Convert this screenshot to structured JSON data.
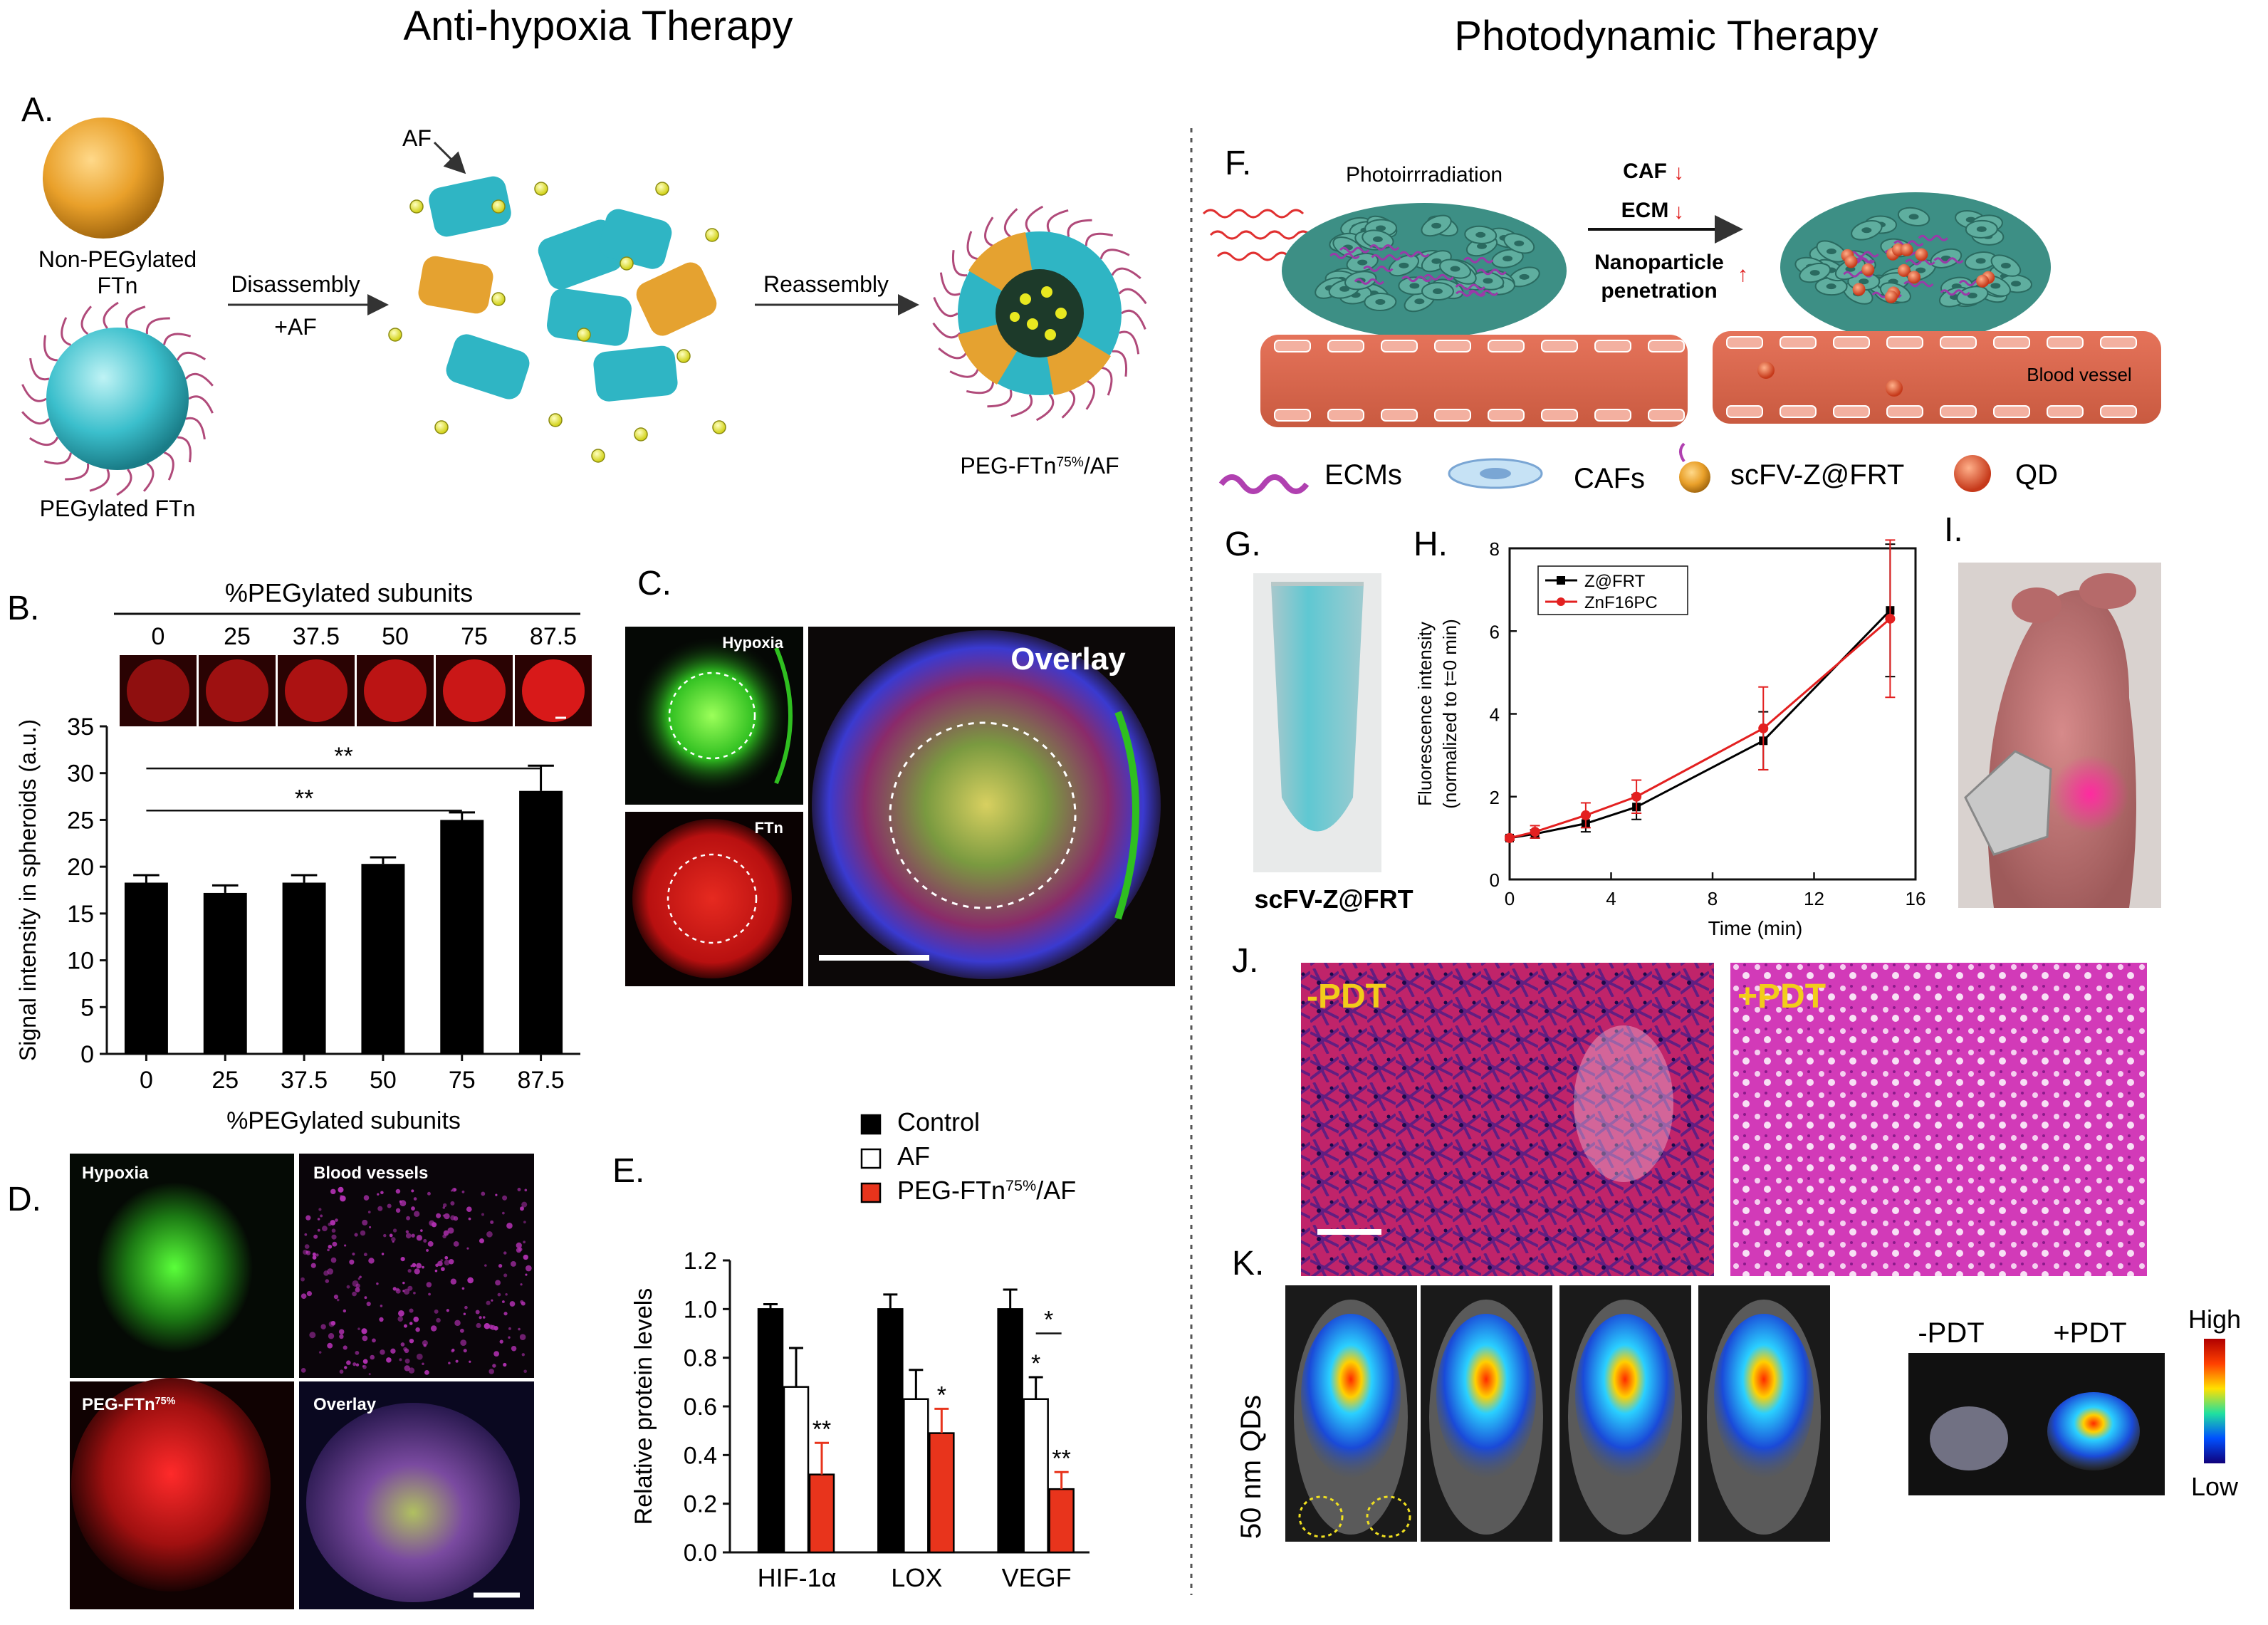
{
  "titles": {
    "left": "Anti-hypoxia Therapy",
    "right": "Photodynamic Therapy"
  },
  "panelA": {
    "letter": "A.",
    "af_pointer": "AF",
    "non_peg": [
      "Non-PEGylated",
      "FTn"
    ],
    "peg": "PEGylated FTn",
    "step1": [
      "Disassembly",
      "+AF"
    ],
    "step2": "Reassembly",
    "product": "PEG-FTn75%/AF"
  },
  "panelB": {
    "letter": "B.",
    "top_title": "%PEGylated subunits",
    "sig": [
      "**",
      "**"
    ]
  },
  "panelC": {
    "letter": "C.",
    "labels": {
      "hypoxia": "Hypoxia",
      "ftn": "FTn",
      "overlay": "Overlay"
    }
  },
  "panelD": {
    "letter": "D.",
    "labels": [
      "Hypoxia",
      "Blood vessels",
      "PEG-FTn75%",
      "Overlay"
    ]
  },
  "panelE": {
    "letter": "E.",
    "sig": [
      "**",
      "*",
      "*",
      "*",
      "**"
    ]
  },
  "panelF": {
    "letter": "F.",
    "photo": "Photoirrradiation",
    "caf": "CAF",
    "ecm": "ECM",
    "np": [
      "Nanoparticle",
      "penetration"
    ],
    "vessel": "Blood vessel",
    "legend": [
      "ECMs",
      "CAFs",
      "scFV-Z@FRT",
      "QD"
    ]
  },
  "panelG": {
    "letter": "G.",
    "caption": "scFV-Z@FRT"
  },
  "panelH": {
    "letter": "H."
  },
  "panelI": {
    "letter": "I."
  },
  "panelJ": {
    "letter": "J.",
    "labels": [
      "-PDT",
      "+PDT"
    ]
  },
  "panelK": {
    "letter": "K.",
    "side_label": "50 nm QDs",
    "labels": [
      "-PDT",
      "+PDT"
    ],
    "scale_high": "High",
    "scale_low": "Low"
  },
  "colors": {
    "control": "#000000",
    "af": "#ffffff",
    "peg_ftn": "#e8341c",
    "z_frt": "#000000",
    "znf16pc": "#e32020"
  },
  "chart_data": [
    {
      "type": "bar",
      "categories": [
        "0",
        "25",
        "37.5",
        "50",
        "75",
        "87.5"
      ],
      "values": [
        18.3,
        17.2,
        18.3,
        20.3,
        25.0,
        28.1
      ],
      "errors": [
        0.8,
        0.8,
        0.8,
        0.7,
        0.8,
        2.7
      ],
      "xlabel": "%PEGylated subunits",
      "ylabel": "Signal intensity in spheroids (a.u.)",
      "ylim": [
        0,
        35
      ],
      "yticks": [
        "0",
        "5",
        "10",
        "15",
        "20",
        "25",
        "30",
        "35"
      ],
      "grid": false
    },
    {
      "type": "bar",
      "categories": [
        "HIF-1α",
        "LOX",
        "VEGF"
      ],
      "series": [
        {
          "name": "Control",
          "values": [
            1.0,
            1.0,
            1.0
          ],
          "errors": [
            0.02,
            0.06,
            0.08
          ]
        },
        {
          "name": "AF",
          "values": [
            0.68,
            0.63,
            0.63
          ],
          "errors": [
            0.16,
            0.12,
            0.09
          ]
        },
        {
          "name": "PEG-FTn75%/AF",
          "values": [
            0.32,
            0.49,
            0.26
          ],
          "errors": [
            0.13,
            0.1,
            0.07
          ]
        }
      ],
      "ylabel": "Relative protein levels",
      "ylim": [
        0,
        1.2
      ],
      "yticks": [
        "0.0",
        "0.2",
        "0.4",
        "0.6",
        "0.8",
        "1.0",
        "1.2"
      ],
      "legend": "top-right",
      "grid": false
    },
    {
      "type": "line",
      "x": [
        0,
        1,
        3,
        5,
        10,
        15
      ],
      "series": [
        {
          "name": "Z@FRT",
          "values": [
            1.0,
            1.1,
            1.35,
            1.75,
            3.35,
            6.5
          ],
          "errors": [
            0.05,
            0.1,
            0.2,
            0.3,
            0.7,
            1.6
          ]
        },
        {
          "name": "ZnF16PC",
          "values": [
            1.0,
            1.15,
            1.55,
            2.0,
            3.65,
            6.3
          ],
          "errors": [
            0.05,
            0.15,
            0.3,
            0.4,
            1.0,
            1.9
          ]
        }
      ],
      "xlabel": "Time (min)",
      "ylabel": [
        "Fluorescence intensity",
        "(normalized to t=0 min)"
      ],
      "xlim": [
        0,
        16
      ],
      "ylim": [
        0,
        8
      ],
      "xticks": [
        "0",
        "4",
        "8",
        "12",
        "16"
      ],
      "yticks": [
        "0",
        "2",
        "4",
        "6",
        "8"
      ],
      "legend": "top-left",
      "grid": false
    }
  ]
}
